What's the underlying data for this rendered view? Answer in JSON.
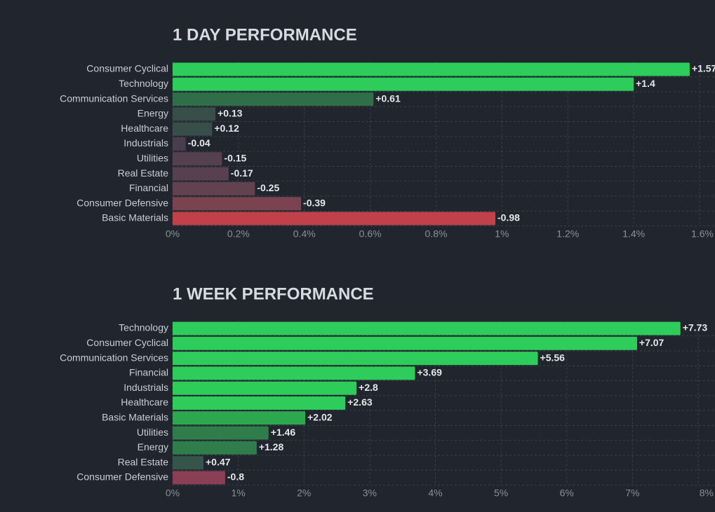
{
  "chart_data": [
    {
      "type": "bar",
      "orientation": "horizontal",
      "title": "1 DAY PERFORMANCE",
      "categories": [
        "Consumer Cyclical",
        "Technology",
        "Communication Services",
        "Energy",
        "Healthcare",
        "Industrials",
        "Utilities",
        "Real Estate",
        "Financial",
        "Consumer Defensive",
        "Basic Materials"
      ],
      "values": [
        1.57,
        1.4,
        0.61,
        0.13,
        0.12,
        -0.04,
        -0.15,
        -0.17,
        -0.25,
        -0.39,
        -0.98
      ],
      "value_labels": [
        "+1.57",
        "+1.4",
        "+0.61",
        "+0.13",
        "+0.12",
        "-0.04",
        "-0.15",
        "-0.17",
        "-0.25",
        "-0.39",
        "-0.98"
      ],
      "colors": [
        "#2ecc5a",
        "#2ecc5a",
        "#2f6e48",
        "#384f49",
        "#384f49",
        "#4a3d4e",
        "#54404f",
        "#57404f",
        "#63424f",
        "#7a4350",
        "#c0414a"
      ],
      "xlim": [
        0,
        1.6
      ],
      "xticks": [
        {
          "value": 0,
          "label": "0%"
        },
        {
          "value": 0.2,
          "label": "0.2%"
        },
        {
          "value": 0.4,
          "label": "0.4%"
        },
        {
          "value": 0.6,
          "label": "0.6%"
        },
        {
          "value": 0.8,
          "label": "0.8%"
        },
        {
          "value": 1,
          "label": "1%"
        },
        {
          "value": 1.2,
          "label": "1.2%"
        },
        {
          "value": 1.4,
          "label": "1.4%"
        },
        {
          "value": 1.6,
          "label": "1.6%"
        }
      ],
      "grid": true
    },
    {
      "type": "bar",
      "orientation": "horizontal",
      "title": "1 WEEK PERFORMANCE",
      "categories": [
        "Technology",
        "Consumer Cyclical",
        "Communication Services",
        "Financial",
        "Industrials",
        "Healthcare",
        "Basic Materials",
        "Utilities",
        "Energy",
        "Real Estate",
        "Consumer Defensive"
      ],
      "values": [
        7.73,
        7.07,
        5.56,
        3.69,
        2.8,
        2.63,
        2.02,
        1.46,
        1.28,
        0.47,
        -0.8
      ],
      "value_labels": [
        "+7.73",
        "+7.07",
        "+5.56",
        "+3.69",
        "+2.8",
        "+2.63",
        "+2.02",
        "+1.46",
        "+1.28",
        "+0.47",
        "-0.8"
      ],
      "colors": [
        "#2ecc5a",
        "#2ecc5a",
        "#2ecc5a",
        "#2ecc5a",
        "#2ecc5a",
        "#2ecc5a",
        "#2ea84e",
        "#2f7d4b",
        "#2f7d4b",
        "#36554a",
        "#8a3f54"
      ],
      "xlim": [
        0,
        8
      ],
      "xticks": [
        {
          "value": 0,
          "label": "0%"
        },
        {
          "value": 1,
          "label": "1%"
        },
        {
          "value": 2,
          "label": "2%"
        },
        {
          "value": 3,
          "label": "3%"
        },
        {
          "value": 4,
          "label": "4%"
        },
        {
          "value": 5,
          "label": "5%"
        },
        {
          "value": 6,
          "label": "6%"
        },
        {
          "value": 7,
          "label": "7%"
        },
        {
          "value": 8,
          "label": "8%"
        }
      ],
      "grid": true
    }
  ]
}
